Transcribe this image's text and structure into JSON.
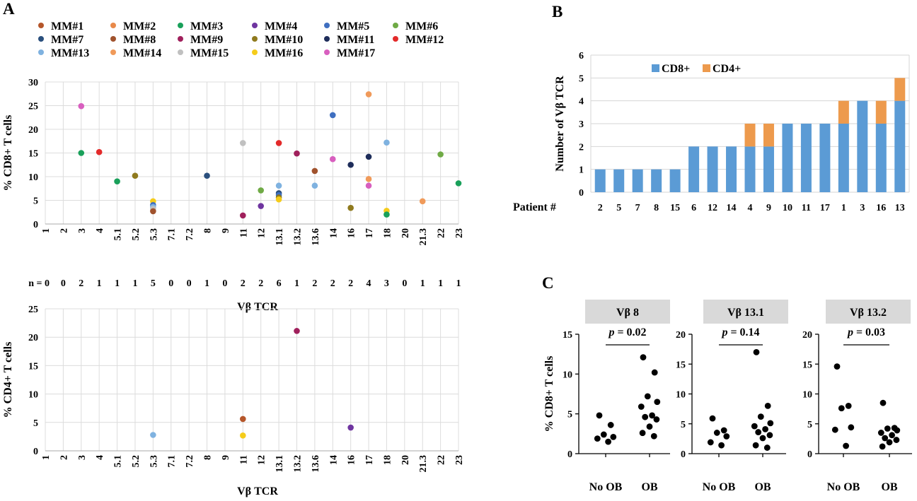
{
  "panels": {
    "A": "A",
    "B": "B",
    "C": "C"
  },
  "colors": {
    "MM#1": "#b5562a",
    "MM#2": "#e8894a",
    "MM#3": "#19a05a",
    "MM#4": "#6f35a0",
    "MM#5": "#3f6fc0",
    "MM#6": "#6faa45",
    "MM#7": "#2a4f7d",
    "MM#8": "#a0522d",
    "MM#9": "#a0205c",
    "MM#10": "#8f7a1e",
    "MM#11": "#1e2d5a",
    "MM#12": "#e32a2a",
    "MM#13": "#7fb2e0",
    "MM#14": "#f09a5a",
    "MM#15": "#c0c0c0",
    "MM#16": "#f5cc1a",
    "MM#17": "#d85fbf",
    "CD8+": "#5b9bd5",
    "CD4+": "#ed9a4d",
    "dot": "#000000"
  },
  "chart_data": [
    {
      "type": "scatter",
      "id": "A-top",
      "title": "",
      "xlabel": "Vβ TCR",
      "ylabel": "% CD8+ T cells",
      "ylim": [
        0,
        30
      ],
      "yticks": [
        0,
        5,
        10,
        15,
        20,
        25,
        30
      ],
      "categories": [
        "1",
        "2",
        "3",
        "4",
        "5.1",
        "5.2",
        "5.3",
        "7.1",
        "7.2",
        "8",
        "9",
        "11",
        "12",
        "13.1",
        "13.2",
        "13.6",
        "14",
        "16",
        "17",
        "18",
        "20",
        "21.3",
        "22",
        "23"
      ],
      "legend": [
        "MM#1",
        "MM#2",
        "MM#3",
        "MM#4",
        "MM#5",
        "MM#6",
        "MM#7",
        "MM#8",
        "MM#9",
        "MM#10",
        "MM#11",
        "MM#12",
        "MM#13",
        "MM#14",
        "MM#15",
        "MM#16",
        "MM#17"
      ],
      "n_label": "n = 0",
      "n_counts": [
        "0",
        "0",
        "2",
        "1",
        "1",
        "1",
        "5",
        "0",
        "0",
        "1",
        "0",
        "2",
        "2",
        "6",
        "1",
        "2",
        "2",
        "2",
        "4",
        "3",
        "0",
        "1",
        "1",
        "1"
      ],
      "points": [
        {
          "x": "3",
          "y": 24.9,
          "s": "MM#17"
        },
        {
          "x": "3",
          "y": 15.0,
          "s": "MM#3"
        },
        {
          "x": "4",
          "y": 15.2,
          "s": "MM#12"
        },
        {
          "x": "5.1",
          "y": 9.0,
          "s": "MM#3"
        },
        {
          "x": "5.2",
          "y": 10.2,
          "s": "MM#10"
        },
        {
          "x": "5.3",
          "y": 4.8,
          "s": "MM#16"
        },
        {
          "x": "5.3",
          "y": 4.0,
          "s": "MM#5"
        },
        {
          "x": "5.3",
          "y": 3.6,
          "s": "MM#13"
        },
        {
          "x": "5.3",
          "y": 3.2,
          "s": "MM#15"
        },
        {
          "x": "5.3",
          "y": 2.7,
          "s": "MM#8"
        },
        {
          "x": "8",
          "y": 10.2,
          "s": "MM#7"
        },
        {
          "x": "11",
          "y": 17.1,
          "s": "MM#15"
        },
        {
          "x": "11",
          "y": 1.8,
          "s": "MM#9"
        },
        {
          "x": "12",
          "y": 7.1,
          "s": "MM#6"
        },
        {
          "x": "12",
          "y": 3.8,
          "s": "MM#4"
        },
        {
          "x": "13.1",
          "y": 17.1,
          "s": "MM#12"
        },
        {
          "x": "13.1",
          "y": 8.1,
          "s": "MM#13"
        },
        {
          "x": "13.1",
          "y": 6.5,
          "s": "MM#7"
        },
        {
          "x": "13.1",
          "y": 6.1,
          "s": "MM#5"
        },
        {
          "x": "13.1",
          "y": 5.6,
          "s": "MM#10"
        },
        {
          "x": "13.1",
          "y": 5.2,
          "s": "MM#16"
        },
        {
          "x": "13.2",
          "y": 14.9,
          "s": "MM#9"
        },
        {
          "x": "13.6",
          "y": 11.2,
          "s": "MM#8"
        },
        {
          "x": "13.6",
          "y": 8.1,
          "s": "MM#13"
        },
        {
          "x": "14",
          "y": 23.0,
          "s": "MM#5"
        },
        {
          "x": "14",
          "y": 13.7,
          "s": "MM#17"
        },
        {
          "x": "16",
          "y": 12.5,
          "s": "MM#11"
        },
        {
          "x": "16",
          "y": 3.4,
          "s": "MM#10"
        },
        {
          "x": "17",
          "y": 27.4,
          "s": "MM#14"
        },
        {
          "x": "17",
          "y": 14.2,
          "s": "MM#11"
        },
        {
          "x": "17",
          "y": 9.5,
          "s": "MM#14"
        },
        {
          "x": "17",
          "y": 8.1,
          "s": "MM#17"
        },
        {
          "x": "18",
          "y": 17.2,
          "s": "MM#13"
        },
        {
          "x": "18",
          "y": 2.8,
          "s": "MM#16"
        },
        {
          "x": "18",
          "y": 2.0,
          "s": "MM#3"
        },
        {
          "x": "21.3",
          "y": 4.8,
          "s": "MM#14"
        },
        {
          "x": "22",
          "y": 14.7,
          "s": "MM#6"
        },
        {
          "x": "23",
          "y": 8.6,
          "s": "MM#3"
        }
      ]
    },
    {
      "type": "scatter",
      "id": "A-bottom",
      "title": "",
      "xlabel": "Vβ TCR",
      "ylabel": "% CD4+ T cells",
      "ylim": [
        0,
        25
      ],
      "yticks": [
        0,
        5,
        10,
        15,
        20,
        25
      ],
      "categories": [
        "1",
        "2",
        "3",
        "4",
        "5.1",
        "5.2",
        "5.3",
        "7.1",
        "7.2",
        "8",
        "9",
        "11",
        "12",
        "13.1",
        "13.2",
        "13.6",
        "14",
        "16",
        "17",
        "18",
        "20",
        "21.3",
        "22",
        "23"
      ],
      "points": [
        {
          "x": "5.3",
          "y": 2.8,
          "s": "MM#13"
        },
        {
          "x": "11",
          "y": 5.6,
          "s": "MM#1"
        },
        {
          "x": "11",
          "y": 2.7,
          "s": "MM#16"
        },
        {
          "x": "13.2",
          "y": 21.1,
          "s": "MM#9"
        },
        {
          "x": "16",
          "y": 4.1,
          "s": "MM#4"
        }
      ]
    },
    {
      "type": "bar",
      "id": "B",
      "stacked": true,
      "title": "",
      "xlabel": "Patient #",
      "ylabel": "Number of Vβ TCR",
      "ylim": [
        0,
        6
      ],
      "yticks": [
        0,
        1,
        2,
        3,
        4,
        5,
        6
      ],
      "categories": [
        "2",
        "5",
        "7",
        "8",
        "15",
        "6",
        "12",
        "14",
        "4",
        "9",
        "10",
        "11",
        "17",
        "1",
        "3",
        "16",
        "13"
      ],
      "series": [
        {
          "name": "CD8+",
          "values": [
            1,
            1,
            1,
            1,
            1,
            2,
            2,
            2,
            2,
            2,
            3,
            3,
            3,
            3,
            4,
            3,
            4
          ]
        },
        {
          "name": "CD4+",
          "values": [
            0,
            0,
            0,
            0,
            0,
            0,
            0,
            0,
            1,
            1,
            0,
            0,
            0,
            1,
            0,
            1,
            1
          ]
        }
      ],
      "legend": [
        "CD8+",
        "CD4+"
      ]
    },
    {
      "type": "scatter",
      "id": "C1",
      "title": "Vβ 8",
      "ylabel": "% CD8+ T cells",
      "ylim": [
        0,
        15
      ],
      "yticks": [
        0,
        5,
        10,
        15
      ],
      "categories": [
        "No OB",
        "OB"
      ],
      "pvalue": "p = 0.02",
      "groups": [
        {
          "name": "No OB",
          "values": [
            4.8,
            3.6,
            2.4,
            2.1,
            1.9,
            1.5
          ]
        },
        {
          "name": "OB",
          "values": [
            12.1,
            10.2,
            7.2,
            6.5,
            5.9,
            4.8,
            4.6,
            4.3,
            3.4,
            2.6,
            2.2
          ]
        }
      ]
    },
    {
      "type": "scatter",
      "id": "C2",
      "title": "Vβ 13.1",
      "ylim": [
        0,
        20
      ],
      "yticks": [
        0,
        5,
        10,
        15,
        20
      ],
      "categories": [
        "No OB",
        "OB"
      ],
      "pvalue": "p = 0.14",
      "groups": [
        {
          "name": "No OB",
          "values": [
            5.9,
            3.9,
            3.5,
            2.9,
            1.9,
            1.4
          ]
        },
        {
          "name": "OB",
          "values": [
            17.0,
            8.0,
            6.2,
            5.1,
            4.6,
            4.1,
            3.6,
            3.1,
            2.6,
            1.4,
            1.0
          ]
        }
      ]
    },
    {
      "type": "scatter",
      "id": "C3",
      "title": "Vβ 13.2",
      "ylim": [
        0,
        20
      ],
      "yticks": [
        0,
        5,
        10,
        15,
        20
      ],
      "categories": [
        "No OB",
        "OB"
      ],
      "pvalue": "p = 0.03",
      "groups": [
        {
          "name": "No OB",
          "values": [
            14.6,
            8.0,
            7.6,
            4.4,
            4.0,
            1.3
          ]
        },
        {
          "name": "OB",
          "values": [
            8.5,
            4.3,
            4.2,
            3.9,
            3.5,
            3.1,
            2.6,
            2.3,
            1.9,
            1.2
          ]
        }
      ]
    }
  ]
}
